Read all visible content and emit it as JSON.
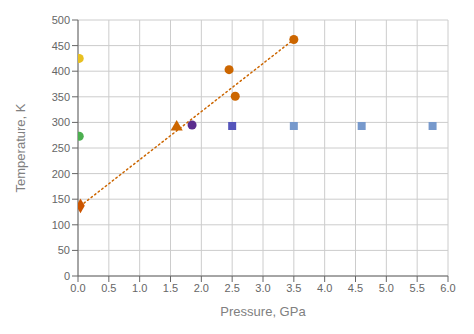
{
  "chart_data": {
    "type": "scatter",
    "xlabel": "Pressure, GPa",
    "ylabel": "Temperature, K",
    "xlim": [
      0,
      6
    ],
    "ylim": [
      0,
      500
    ],
    "xticks": [
      {
        "value": 0,
        "label": "0.0"
      },
      0.5,
      {
        "value": 1,
        "label": "1.0"
      },
      1.5,
      {
        "value": 2,
        "label": "2.0"
      },
      2.5,
      {
        "value": 3,
        "label": "3.0"
      },
      3.5,
      {
        "value": 4,
        "label": "4.0"
      },
      4.5,
      {
        "value": 5,
        "label": "5.0"
      },
      5.5,
      {
        "value": 6,
        "label": "6.0"
      }
    ],
    "yticks": [
      0,
      50,
      100,
      150,
      200,
      250,
      300,
      350,
      400,
      450,
      500
    ],
    "grid": true,
    "series": [
      {
        "type": "line",
        "line_style": "dotted",
        "color": "#cc6600",
        "x": [
          0.04,
          3.5
        ],
        "values": [
          137,
          462
        ]
      },
      {
        "color": "#e8c020",
        "marker": "circle",
        "x": [
          0.02
        ],
        "values": [
          425
        ]
      },
      {
        "color": "#4caf50",
        "marker": "circle",
        "x": [
          0.02
        ],
        "values": [
          273
        ]
      },
      {
        "color": "#cc5500",
        "marker": "diamond",
        "x": [
          0.04
        ],
        "values": [
          137
        ]
      },
      {
        "color": "#cc6600",
        "marker": "triangle",
        "x": [
          1.6
        ],
        "values": [
          291
        ]
      },
      {
        "color": "#5b2d8e",
        "marker": "circle",
        "x": [
          1.85
        ],
        "values": [
          295
        ]
      },
      {
        "color": "#cc6600",
        "marker": "circle",
        "x": [
          2.45
        ],
        "values": [
          403
        ]
      },
      {
        "color": "#cc6600",
        "marker": "circle",
        "x": [
          2.55
        ],
        "values": [
          351
        ]
      },
      {
        "color": "#cc6600",
        "marker": "circle",
        "x": [
          3.5
        ],
        "values": [
          462
        ]
      },
      {
        "color": "#5555bb",
        "marker": "square",
        "x": [
          2.5
        ],
        "values": [
          293
        ]
      },
      {
        "color": "#7799cc",
        "marker": "square",
        "x": [
          3.5
        ],
        "values": [
          293
        ]
      },
      {
        "color": "#7799cc",
        "marker": "square",
        "x": [
          4.6
        ],
        "values": [
          293
        ]
      },
      {
        "color": "#7799cc",
        "marker": "square",
        "x": [
          5.75
        ],
        "values": [
          293
        ]
      }
    ]
  }
}
